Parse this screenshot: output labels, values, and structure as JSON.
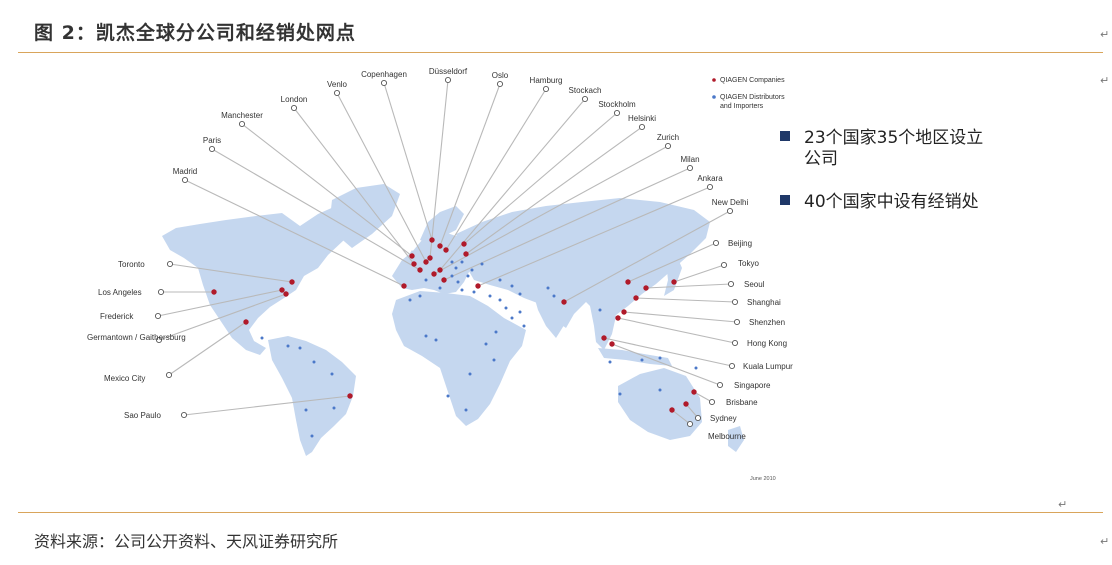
{
  "figure_title": "图 2：凯杰全球分公司和经销处网点",
  "source_note": "资料来源：公司公开资料、天风证券研究所",
  "legend": {
    "companies": "QIAGEN Companies",
    "distributors_line1": "QIAGEN Distributors",
    "distributors_line2": "and Importers"
  },
  "stats": {
    "line1": "23个国家35个地区设立",
    "line2": "公司",
    "line3": "40个国家中设有经销处"
  },
  "date_note": "June 2010",
  "colors": {
    "land": "#c5d7ef",
    "company_dot": "#b01a2a",
    "distributor_dot": "#4b78c8",
    "leader_line": "#b9b9b9",
    "rule": "#d9a55b",
    "stat_bullet": "#1f3868"
  },
  "cities": [
    "Copenhagen",
    "Düsseldorf",
    "Oslo",
    "Hamburg",
    "Stockach",
    "Venlo",
    "London",
    "Manchester",
    "Stockholm",
    "Helsinki",
    "Zurich",
    "Paris",
    "Milan",
    "Madrid",
    "Ankara",
    "New Delhi",
    "Beijing",
    "Tokyo",
    "Seoul",
    "Shanghai",
    "Shenzhen",
    "Hong Kong",
    "Kuala Lumpur",
    "Singapore",
    "Brisbane",
    "Sydney",
    "Melbourne",
    "Toronto",
    "Los Angeles",
    "Frederick",
    "Germantown / Gaithersburg",
    "Mexico City",
    "Sao Paulo"
  ]
}
